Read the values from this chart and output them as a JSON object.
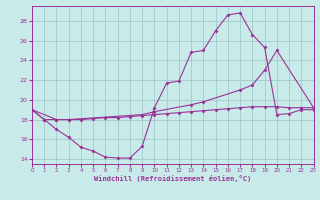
{
  "bg_color": "#c8eae8",
  "line_color": "#993399",
  "grid_color": "#a0cccc",
  "xlabel": "Windchill (Refroidissement éolien,°C)",
  "xlim": [
    0,
    23
  ],
  "ylim": [
    13.5,
    29.5
  ],
  "yticks": [
    14,
    16,
    18,
    20,
    22,
    24,
    26,
    28
  ],
  "xticks": [
    0,
    1,
    2,
    3,
    4,
    5,
    6,
    7,
    8,
    9,
    10,
    11,
    12,
    13,
    14,
    15,
    16,
    17,
    18,
    19,
    20,
    21,
    22,
    23
  ],
  "curve1_x": [
    0,
    1,
    2,
    3,
    4,
    5,
    6,
    7,
    8,
    9,
    10,
    11,
    12,
    13,
    14,
    15,
    16,
    17,
    18,
    19,
    20,
    21,
    22,
    23
  ],
  "curve1_y": [
    19.0,
    18.0,
    17.0,
    16.2,
    15.2,
    14.8,
    14.2,
    14.1,
    14.1,
    15.3,
    19.2,
    21.7,
    21.9,
    24.8,
    25.0,
    27.0,
    28.6,
    28.8,
    26.6,
    25.3,
    18.5,
    18.6,
    19.0,
    19.0
  ],
  "curve2_x": [
    0,
    1,
    2,
    3,
    4,
    5,
    6,
    7,
    8,
    9,
    10,
    11,
    12,
    13,
    14,
    15,
    16,
    17,
    18,
    19,
    20,
    21,
    22,
    23
  ],
  "curve2_y": [
    19.0,
    18.0,
    18.0,
    18.0,
    18.0,
    18.1,
    18.2,
    18.2,
    18.3,
    18.4,
    18.5,
    18.6,
    18.7,
    18.8,
    18.9,
    19.0,
    19.1,
    19.2,
    19.3,
    19.3,
    19.3,
    19.2,
    19.2,
    19.2
  ],
  "curve3_x": [
    0,
    2,
    3,
    9,
    10,
    13,
    14,
    17,
    18,
    19,
    20,
    23
  ],
  "curve3_y": [
    19.0,
    18.0,
    18.0,
    18.5,
    18.8,
    19.5,
    19.8,
    21.0,
    21.5,
    23.0,
    25.0,
    19.2
  ]
}
